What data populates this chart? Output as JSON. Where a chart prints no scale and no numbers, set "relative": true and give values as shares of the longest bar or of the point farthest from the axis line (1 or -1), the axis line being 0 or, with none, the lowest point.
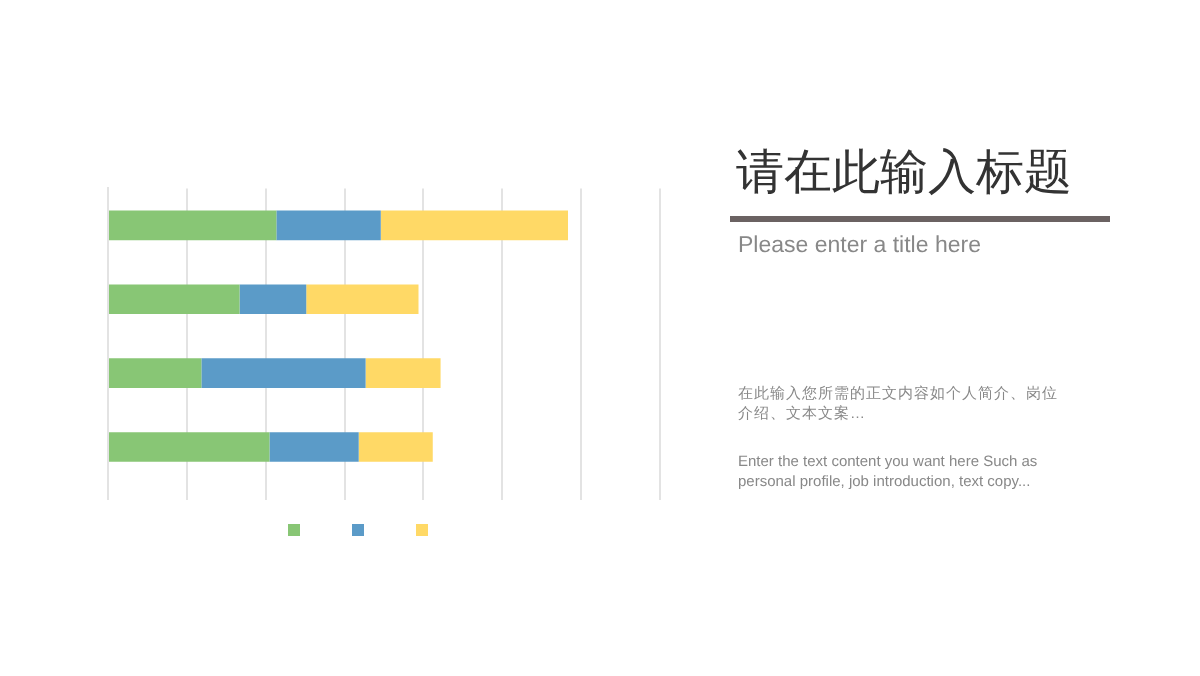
{
  "chart_data": {
    "type": "bar",
    "orientation": "horizontal",
    "stacked": true,
    "relative": true,
    "title": "请在此输入标题",
    "subtitle": "Please enter a title here",
    "annotations": [
      "在此输入您所需的正文内容如个人简介、岗位介绍、文本文案…",
      "Enter the text content you want here Such as personal profile, job introduction, text copy..."
    ],
    "categories": [
      null,
      null,
      null,
      null
    ],
    "series": [
      {
        "color": "#88c675",
        "values": [
          0.366,
          0.286,
          0.203,
          0.351
        ]
      },
      {
        "color": "#5b9bc8",
        "values": [
          0.227,
          0.145,
          0.357,
          0.194
        ]
      },
      {
        "color": "#ffd966",
        "values": [
          0.407,
          0.244,
          0.163,
          0.161
        ]
      }
    ],
    "grid": "x"
  }
}
